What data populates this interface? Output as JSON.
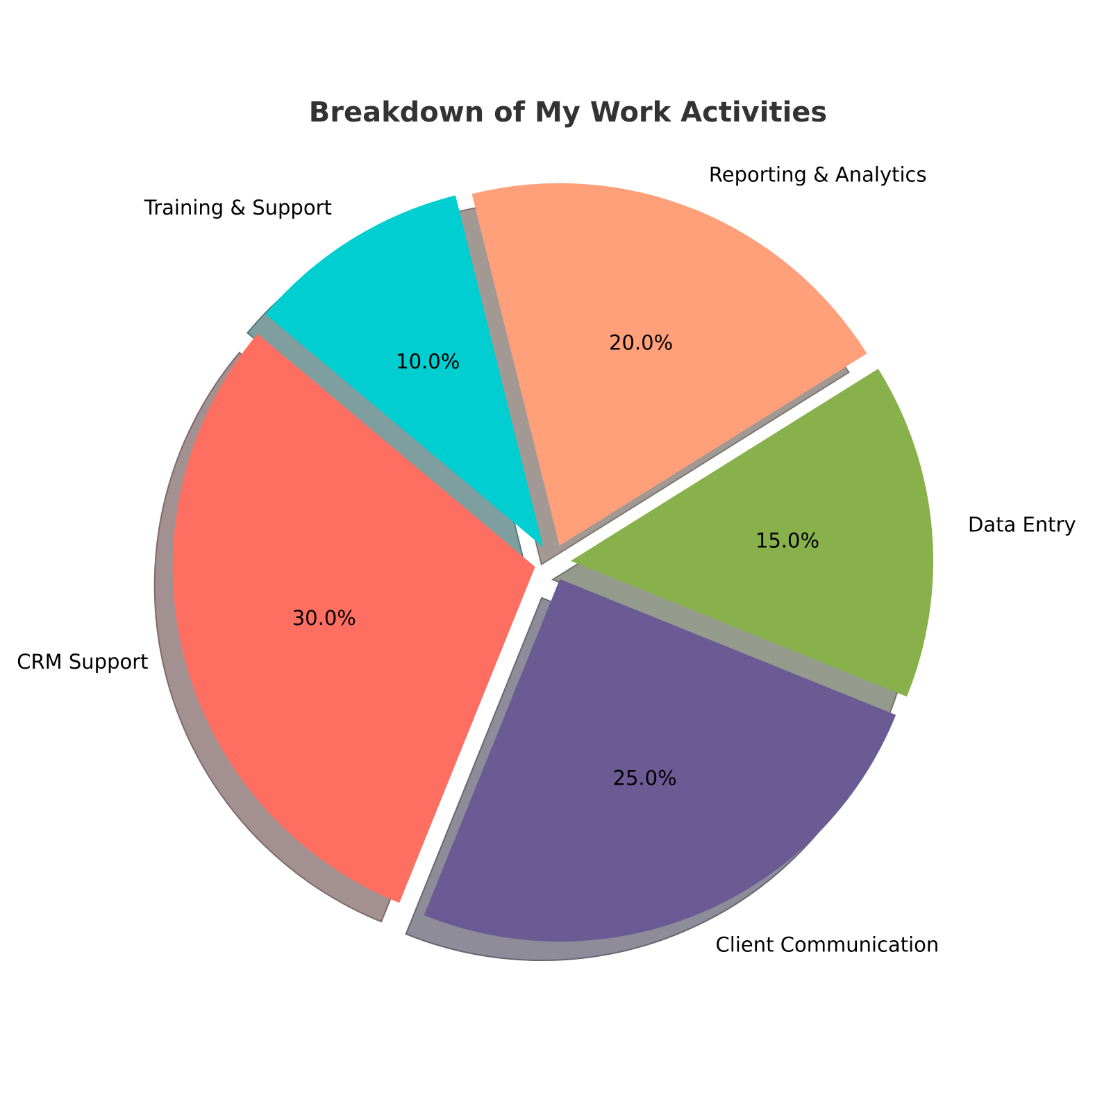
{
  "chart_data": {
    "type": "pie",
    "title": "Breakdown of My Work Activities",
    "categories": [
      "CRM Support",
      "Client Communication",
      "Data Entry",
      "Reporting & Analytics",
      "Training & Support"
    ],
    "values": [
      30,
      25,
      15,
      20,
      10
    ],
    "value_labels": [
      "30.0%",
      "25.0%",
      "15.0%",
      "20.0%",
      "10.0%"
    ],
    "colors": [
      "#FF6F61",
      "#6B5B95",
      "#88B04B",
      "#FFA07A",
      "#00CED1"
    ],
    "start_angle_deg": 140,
    "direction": "counterclockwise",
    "explode": [
      0.05,
      0.05,
      0.05,
      0.05,
      0.05
    ],
    "shadow": true
  }
}
